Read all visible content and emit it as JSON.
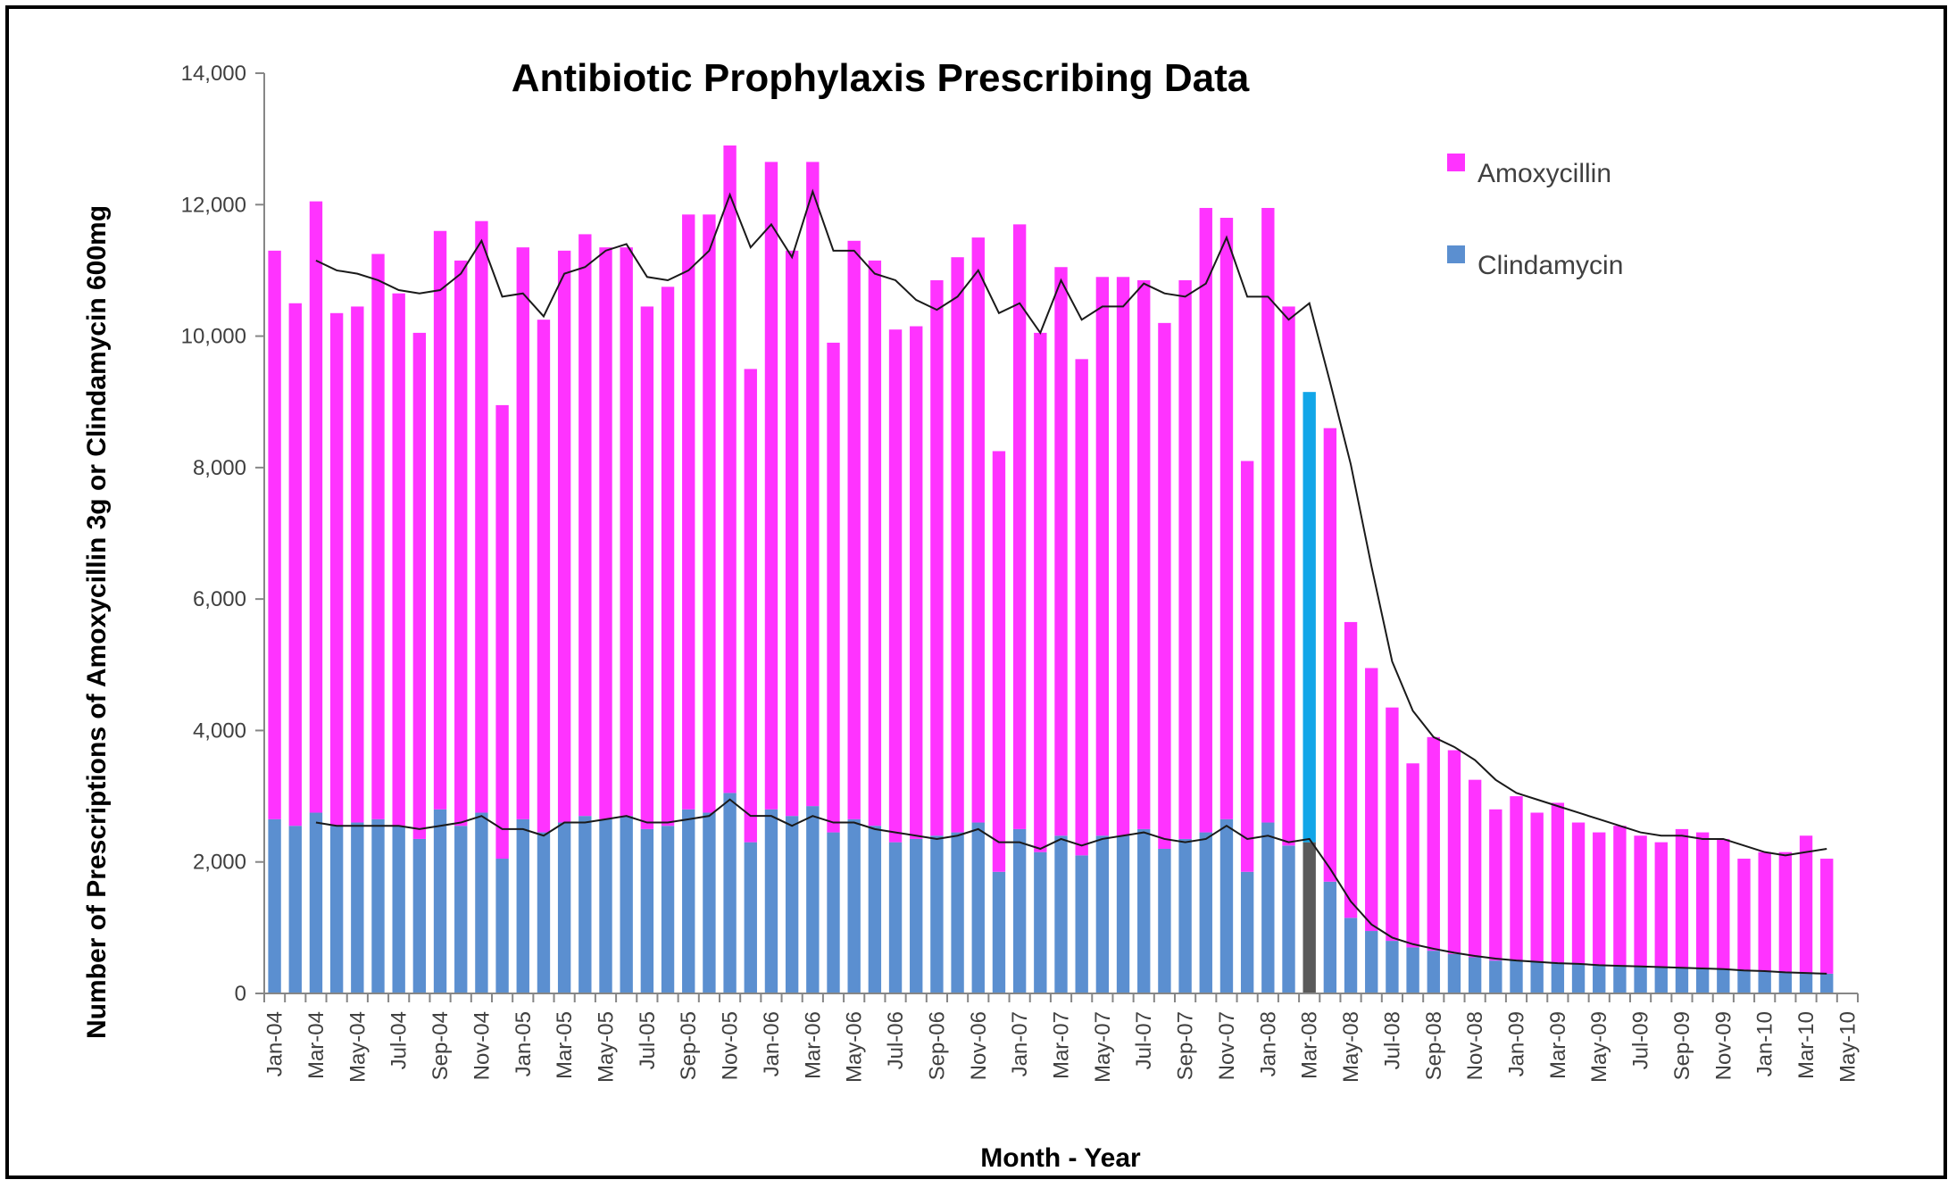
{
  "chart_data": {
    "type": "bar",
    "stacked": true,
    "title": "Antibiotic Prophylaxis Prescribing Data",
    "xlabel": "Month - Year",
    "ylabel": "Number of Prescriptions of Amoxycillin 3g or Clindamycin 600mg",
    "ylim": [
      0,
      14000
    ],
    "yticks": [
      0,
      2000,
      4000,
      6000,
      8000,
      10000,
      12000,
      14000
    ],
    "ytick_labels": [
      "0",
      "2,000",
      "4,000",
      "6,000",
      "8,000",
      "10,000",
      "12,000",
      "14,000"
    ],
    "grid": false,
    "legend_position": "top-right",
    "categories": [
      "Jan-04",
      "Feb-04",
      "Mar-04",
      "Apr-04",
      "May-04",
      "Jun-04",
      "Jul-04",
      "Aug-04",
      "Sep-04",
      "Oct-04",
      "Nov-04",
      "Dec-04",
      "Jan-05",
      "Feb-05",
      "Mar-05",
      "Apr-05",
      "May-05",
      "Jun-05",
      "Jul-05",
      "Aug-05",
      "Sep-05",
      "Oct-05",
      "Nov-05",
      "Dec-05",
      "Jan-06",
      "Feb-06",
      "Mar-06",
      "Apr-06",
      "May-06",
      "Jun-06",
      "Jul-06",
      "Aug-06",
      "Sep-06",
      "Oct-06",
      "Nov-06",
      "Dec-06",
      "Jan-07",
      "Feb-07",
      "Mar-07",
      "Apr-07",
      "May-07",
      "Jun-07",
      "Jul-07",
      "Aug-07",
      "Sep-07",
      "Oct-07",
      "Nov-07",
      "Dec-07",
      "Jan-08",
      "Feb-08",
      "Mar-08",
      "Apr-08",
      "May-08",
      "Jun-08",
      "Jul-08",
      "Aug-08",
      "Sep-08",
      "Oct-08",
      "Nov-08",
      "Dec-08",
      "Jan-09",
      "Feb-09",
      "Mar-09",
      "Apr-09",
      "May-09",
      "Jun-09",
      "Jul-09",
      "Aug-09",
      "Sep-09",
      "Oct-09",
      "Nov-09",
      "Dec-09",
      "Jan-10",
      "Feb-10",
      "Mar-10",
      "Apr-10",
      "May-10"
    ],
    "xtick_labels": [
      "Jan-04",
      "Mar-04",
      "May-04",
      "Jul-04",
      "Sep-04",
      "Nov-04",
      "Jan-05",
      "Mar-05",
      "May-05",
      "Jul-05",
      "Sep-05",
      "Nov-05",
      "Jan-06",
      "Mar-06",
      "May-06",
      "Jul-06",
      "Sep-06",
      "Nov-06",
      "Jan-07",
      "Mar-07",
      "May-07",
      "Jul-07",
      "Sep-07",
      "Nov-07",
      "Jan-08",
      "Mar-08",
      "May-08",
      "Jul-08",
      "Sep-08",
      "Nov-08",
      "Jan-09",
      "Mar-09",
      "May-09",
      "Jul-09",
      "Sep-09",
      "Nov-09",
      "Jan-10",
      "Mar-10",
      "May-10"
    ],
    "totals": [
      11300,
      10500,
      12050,
      10350,
      10450,
      11250,
      10650,
      10050,
      11600,
      11150,
      11750,
      8950,
      11350,
      10250,
      11300,
      11550,
      11350,
      11350,
      10450,
      10750,
      11850,
      11850,
      12900,
      9500,
      12650,
      11300,
      12650,
      9900,
      11450,
      11150,
      10100,
      10150,
      10850,
      11200,
      11500,
      8250,
      11700,
      10050,
      11050,
      9650,
      10900,
      10900,
      10850,
      10200,
      10850,
      11950,
      11800,
      8100,
      11950,
      10450,
      9150,
      8600,
      5650,
      4950,
      4350,
      3500,
      3900,
      3700,
      3250,
      2800,
      3000,
      2750,
      2900,
      2600,
      2450,
      2550,
      2400,
      2300,
      2500,
      2450,
      2350,
      2050,
      2150,
      2150,
      2400,
      2050,
      null
    ],
    "series": [
      {
        "name": "Clindamycin",
        "color": "#5b8fd0",
        "values": [
          2650,
          2550,
          2750,
          2550,
          2600,
          2650,
          2550,
          2350,
          2800,
          2550,
          2750,
          2050,
          2650,
          2450,
          2600,
          2700,
          2650,
          2700,
          2500,
          2550,
          2800,
          2750,
          3050,
          2300,
          2800,
          2700,
          2850,
          2450,
          2650,
          2550,
          2300,
          2350,
          2400,
          2450,
          2600,
          1850,
          2500,
          2150,
          2400,
          2100,
          2400,
          2400,
          2500,
          2200,
          2350,
          2450,
          2650,
          1850,
          2600,
          2250,
          2300,
          1700,
          1150,
          950,
          800,
          700,
          650,
          600,
          550,
          500,
          500,
          480,
          460,
          450,
          430,
          420,
          410,
          400,
          390,
          380,
          370,
          350,
          330,
          320,
          310,
          300,
          null
        ],
        "highlight": {
          "index": 50,
          "colors": [
            "#5a5a5a",
            "#12a6e8"
          ]
        }
      },
      {
        "name": "Amoxycillin",
        "color": "#ff33ff",
        "values": [
          8650,
          7950,
          9300,
          7800,
          7850,
          8600,
          8100,
          7700,
          8800,
          8600,
          9000,
          6900,
          8700,
          7800,
          8700,
          8850,
          8700,
          8650,
          7950,
          8200,
          9050,
          9100,
          9850,
          7200,
          9850,
          8600,
          9800,
          7450,
          8800,
          8600,
          7800,
          7800,
          8450,
          8750,
          8900,
          6400,
          9200,
          7900,
          8650,
          7550,
          8500,
          8500,
          8350,
          8000,
          8500,
          9500,
          9150,
          6250,
          9350,
          8200,
          6850,
          6900,
          4500,
          4000,
          3550,
          2800,
          3250,
          3100,
          2700,
          2300,
          2500,
          2270,
          2440,
          2150,
          2020,
          2130,
          1990,
          1900,
          2110,
          2070,
          1980,
          1700,
          1820,
          1830,
          2090,
          1750,
          null
        ]
      }
    ],
    "trendlines": [
      {
        "of": "totals",
        "values": [
          null,
          null,
          11150,
          11000,
          10950,
          10850,
          10700,
          10650,
          10700,
          10950,
          11450,
          10600,
          10650,
          10300,
          10950,
          11050,
          11300,
          11400,
          10900,
          10850,
          11000,
          11300,
          12150,
          11350,
          11700,
          11200,
          12200,
          11300,
          11300,
          10950,
          10850,
          10550,
          10400,
          10600,
          11000,
          10350,
          10500,
          10050,
          10850,
          10250,
          10450,
          10450,
          10800,
          10650,
          10600,
          10800,
          11500,
          10600,
          10600,
          10250,
          10500,
          9300,
          8050,
          6500,
          5050,
          4300,
          3900,
          3750,
          3550,
          3250,
          3050,
          2950,
          2850,
          2750,
          2650,
          2550,
          2450,
          2400,
          2400,
          2350,
          2350,
          2250,
          2150,
          2100,
          2150,
          2200,
          null
        ]
      },
      {
        "of": "Clindamycin",
        "values": [
          null,
          null,
          2600,
          2550,
          2550,
          2550,
          2550,
          2500,
          2550,
          2600,
          2700,
          2500,
          2500,
          2400,
          2600,
          2600,
          2650,
          2700,
          2600,
          2600,
          2650,
          2700,
          2950,
          2700,
          2700,
          2550,
          2700,
          2600,
          2600,
          2500,
          2450,
          2400,
          2350,
          2400,
          2500,
          2300,
          2300,
          2200,
          2350,
          2250,
          2350,
          2400,
          2450,
          2350,
          2300,
          2350,
          2550,
          2350,
          2400,
          2300,
          2350,
          1900,
          1400,
          1050,
          850,
          750,
          680,
          620,
          570,
          530,
          500,
          480,
          460,
          450,
          430,
          420,
          410,
          400,
          390,
          380,
          370,
          350,
          340,
          320,
          310,
          300,
          null
        ]
      }
    ]
  },
  "legend": {
    "items": [
      {
        "label": "Amoxycillin",
        "color": "#ff33ff"
      },
      {
        "label": "Clindamycin",
        "color": "#5b8fd0"
      }
    ]
  }
}
